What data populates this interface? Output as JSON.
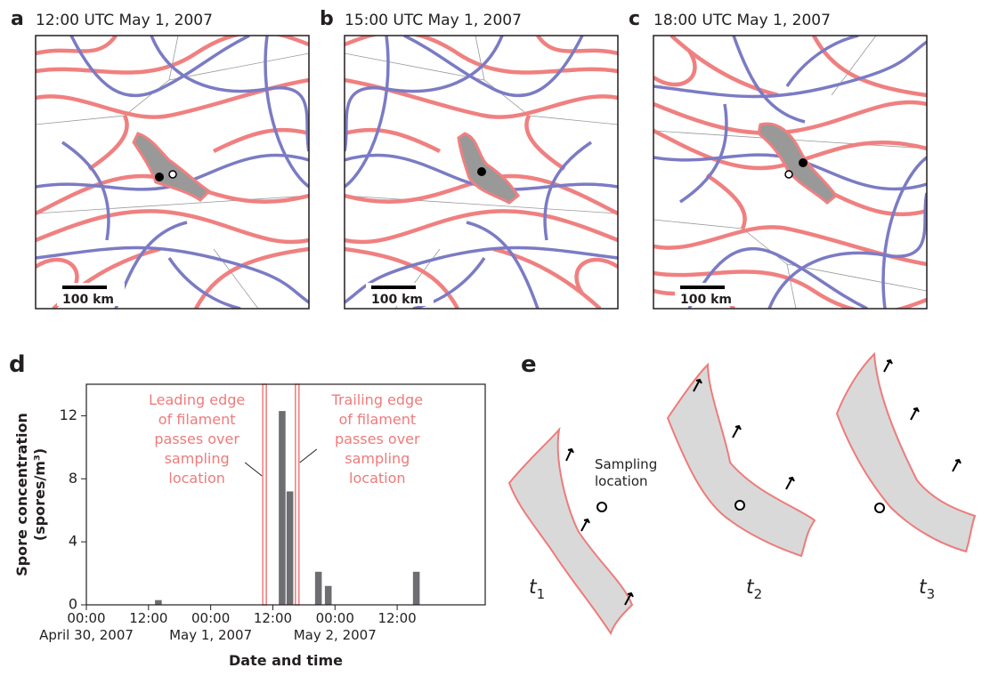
{
  "panels": [
    {
      "letter": "a",
      "title": "12:00 UTC May 1, 2007",
      "scale": "100 km"
    },
    {
      "letter": "b",
      "title": "15:00 UTC May 1, 2007",
      "scale": "100 km"
    },
    {
      "letter": "c",
      "title": "18:00 UTC May 1, 2007",
      "scale": "100 km"
    }
  ],
  "chart_data": {
    "type": "bar",
    "panel_label": "d",
    "xlabel": "Date and time",
    "ylabel": [
      "Spore concentration",
      "(spores/m³)"
    ],
    "x": [
      13.9,
      37.8,
      39.3,
      44.8,
      46.7,
      63.7
    ],
    "values": [
      0.3,
      12.3,
      7.2,
      2.1,
      1.2,
      2.1
    ],
    "color": "#6d6e71",
    "xlim": [
      0,
      77
    ],
    "ylim": [
      0,
      14
    ],
    "yticks": [
      0,
      4,
      8,
      12
    ],
    "xticks": [
      {
        "value": 0,
        "label": "00:00"
      },
      {
        "value": 12,
        "label": "12:00"
      },
      {
        "value": 24,
        "label": "00:00"
      },
      {
        "value": 36,
        "label": "12:00"
      },
      {
        "value": 48,
        "label": "00:00"
      },
      {
        "value": 60,
        "label": "12:00"
      }
    ],
    "date_labels": [
      {
        "value": 0,
        "label": "April 30, 2007"
      },
      {
        "value": 24,
        "label": "May 1, 2007"
      },
      {
        "value": 48,
        "label": "May 2, 2007"
      }
    ],
    "annotations": [
      {
        "x": 34.4,
        "color": "#ee7b7b",
        "lines": [
          "Leading edge",
          "of filament",
          "passes over",
          "sampling",
          "location"
        ]
      },
      {
        "x": 40.7,
        "color": "#ee7b7b",
        "lines": [
          "Trailing edge",
          "of filament",
          "passes over",
          "sampling",
          "location"
        ]
      }
    ]
  },
  "diagram": {
    "letter": "e",
    "sampling_label": [
      "Sampling",
      "location"
    ],
    "times": [
      {
        "var": "t",
        "sub": "1"
      },
      {
        "var": "t",
        "sub": "2"
      },
      {
        "var": "t",
        "sub": "3"
      }
    ]
  }
}
